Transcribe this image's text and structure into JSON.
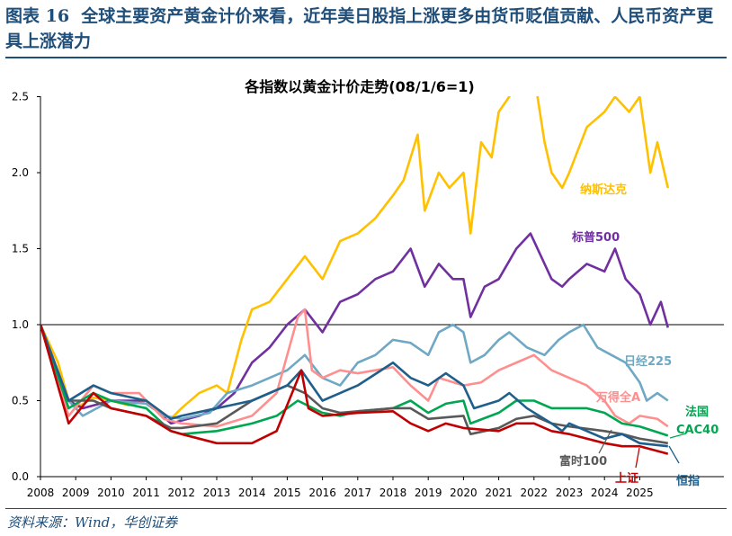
{
  "header": {
    "figure_label": "图表 16",
    "title": "全球主要资产黄金计价来看，近年美日股指上涨更多由货币贬值贡献、人民币资产更具上涨潜力"
  },
  "source": "资料来源：Wind，华创证券",
  "chart_data": {
    "type": "line",
    "title": "各指数以黄金计价走势(08/1/6=1)",
    "xlabel": "",
    "ylabel": "",
    "xlim": [
      2008,
      2026.3
    ],
    "ylim": [
      0,
      2.5
    ],
    "x_ticks": [
      "2008",
      "2009",
      "2010",
      "2011",
      "2012",
      "2013",
      "2014",
      "2015",
      "2016",
      "2017",
      "2018",
      "2019",
      "2020",
      "2021",
      "2022",
      "2023",
      "2024",
      "2025"
    ],
    "y_ticks": [
      "0.0",
      "0.5",
      "1.0",
      "1.5",
      "2.0",
      "2.5"
    ],
    "reference_line": 1.0,
    "grid": false,
    "series": [
      {
        "name": "纳斯达克",
        "color": "#FFC000",
        "points": [
          [
            2008,
            1
          ],
          [
            2008.5,
            0.75
          ],
          [
            2008.8,
            0.5
          ],
          [
            2009,
            0.45
          ],
          [
            2009.5,
            0.52
          ],
          [
            2010,
            0.5
          ],
          [
            2010.5,
            0.47
          ],
          [
            2011,
            0.5
          ],
          [
            2011.7,
            0.38
          ],
          [
            2012,
            0.45
          ],
          [
            2012.5,
            0.55
          ],
          [
            2013,
            0.6
          ],
          [
            2013.3,
            0.55
          ],
          [
            2013.7,
            0.9
          ],
          [
            2014,
            1.1
          ],
          [
            2014.5,
            1.15
          ],
          [
            2015,
            1.3
          ],
          [
            2015.5,
            1.45
          ],
          [
            2016,
            1.3
          ],
          [
            2016.5,
            1.55
          ],
          [
            2017,
            1.6
          ],
          [
            2017.5,
            1.7
          ],
          [
            2018,
            1.85
          ],
          [
            2018.3,
            1.95
          ],
          [
            2018.7,
            2.25
          ],
          [
            2018.9,
            1.75
          ],
          [
            2019.3,
            2.0
          ],
          [
            2019.6,
            1.9
          ],
          [
            2020,
            2.0
          ],
          [
            2020.2,
            1.6
          ],
          [
            2020.5,
            2.2
          ],
          [
            2020.8,
            2.1
          ],
          [
            2021,
            2.4
          ],
          [
            2021.3,
            2.5
          ],
          [
            2021.6,
            2.8
          ],
          [
            2022,
            2.7
          ],
          [
            2022.1,
            2.5
          ],
          [
            2022.3,
            2.2
          ],
          [
            2022.5,
            2.0
          ],
          [
            2022.8,
            1.9
          ],
          [
            2023,
            2.0
          ],
          [
            2023.5,
            2.3
          ],
          [
            2024,
            2.4
          ],
          [
            2024.3,
            2.5
          ],
          [
            2024.7,
            2.4
          ],
          [
            2025,
            2.5
          ],
          [
            2025.3,
            2.0
          ],
          [
            2025.5,
            2.2
          ],
          [
            2025.8,
            1.9
          ]
        ]
      },
      {
        "name": "标普500",
        "color": "#7030A0",
        "points": [
          [
            2008,
            1
          ],
          [
            2008.8,
            0.5
          ],
          [
            2009.2,
            0.45
          ],
          [
            2010,
            0.5
          ],
          [
            2011,
            0.5
          ],
          [
            2011.7,
            0.35
          ],
          [
            2012.5,
            0.4
          ],
          [
            2013,
            0.45
          ],
          [
            2013.5,
            0.55
          ],
          [
            2014,
            0.75
          ],
          [
            2014.5,
            0.85
          ],
          [
            2015,
            1.0
          ],
          [
            2015.5,
            1.1
          ],
          [
            2016,
            0.95
          ],
          [
            2016.5,
            1.15
          ],
          [
            2017,
            1.2
          ],
          [
            2017.5,
            1.3
          ],
          [
            2018,
            1.35
          ],
          [
            2018.5,
            1.5
          ],
          [
            2018.9,
            1.25
          ],
          [
            2019.3,
            1.4
          ],
          [
            2019.7,
            1.3
          ],
          [
            2020,
            1.3
          ],
          [
            2020.2,
            1.05
          ],
          [
            2020.6,
            1.25
          ],
          [
            2021,
            1.3
          ],
          [
            2021.5,
            1.5
          ],
          [
            2021.9,
            1.6
          ],
          [
            2022.2,
            1.45
          ],
          [
            2022.5,
            1.3
          ],
          [
            2022.8,
            1.25
          ],
          [
            2023,
            1.3
          ],
          [
            2023.5,
            1.4
          ],
          [
            2024,
            1.35
          ],
          [
            2024.3,
            1.5
          ],
          [
            2024.6,
            1.3
          ],
          [
            2025,
            1.2
          ],
          [
            2025.3,
            1.0
          ],
          [
            2025.6,
            1.15
          ],
          [
            2025.8,
            0.98
          ]
        ]
      },
      {
        "name": "日经225",
        "color": "#6FA8C4",
        "points": [
          [
            2008,
            1
          ],
          [
            2008.8,
            0.5
          ],
          [
            2009.2,
            0.4
          ],
          [
            2010,
            0.5
          ],
          [
            2011,
            0.48
          ],
          [
            2011.5,
            0.4
          ],
          [
            2012,
            0.38
          ],
          [
            2012.8,
            0.42
          ],
          [
            2013.3,
            0.55
          ],
          [
            2014,
            0.6
          ],
          [
            2015,
            0.7
          ],
          [
            2015.5,
            0.8
          ],
          [
            2016,
            0.65
          ],
          [
            2016.5,
            0.6
          ],
          [
            2017,
            0.75
          ],
          [
            2017.5,
            0.8
          ],
          [
            2018,
            0.9
          ],
          [
            2018.5,
            0.88
          ],
          [
            2019,
            0.8
          ],
          [
            2019.3,
            0.95
          ],
          [
            2019.7,
            1.0
          ],
          [
            2020,
            0.95
          ],
          [
            2020.2,
            0.75
          ],
          [
            2020.6,
            0.8
          ],
          [
            2021,
            0.9
          ],
          [
            2021.3,
            0.95
          ],
          [
            2021.8,
            0.85
          ],
          [
            2022.3,
            0.8
          ],
          [
            2022.7,
            0.9
          ],
          [
            2023,
            0.95
          ],
          [
            2023.4,
            1.0
          ],
          [
            2023.8,
            0.85
          ],
          [
            2024.2,
            0.8
          ],
          [
            2024.6,
            0.75
          ],
          [
            2025,
            0.62
          ],
          [
            2025.2,
            0.5
          ],
          [
            2025.5,
            0.55
          ],
          [
            2025.8,
            0.5
          ]
        ]
      },
      {
        "name": "万得全A",
        "color": "#FF8F8F",
        "points": [
          [
            2008,
            1
          ],
          [
            2008.8,
            0.4
          ],
          [
            2009.5,
            0.6
          ],
          [
            2010,
            0.55
          ],
          [
            2010.8,
            0.55
          ],
          [
            2011.5,
            0.38
          ],
          [
            2012,
            0.35
          ],
          [
            2013,
            0.33
          ],
          [
            2014,
            0.4
          ],
          [
            2014.7,
            0.55
          ],
          [
            2015.3,
            1.05
          ],
          [
            2015.5,
            1.1
          ],
          [
            2015.7,
            0.7
          ],
          [
            2016,
            0.65
          ],
          [
            2016.5,
            0.7
          ],
          [
            2017,
            0.68
          ],
          [
            2018,
            0.72
          ],
          [
            2018.5,
            0.6
          ],
          [
            2019,
            0.5
          ],
          [
            2019.3,
            0.65
          ],
          [
            2020,
            0.6
          ],
          [
            2020.5,
            0.62
          ],
          [
            2021,
            0.7
          ],
          [
            2021.5,
            0.75
          ],
          [
            2022,
            0.8
          ],
          [
            2022.5,
            0.7
          ],
          [
            2023,
            0.65
          ],
          [
            2023.5,
            0.6
          ],
          [
            2024,
            0.5
          ],
          [
            2024.3,
            0.4
          ],
          [
            2024.7,
            0.35
          ],
          [
            2025,
            0.4
          ],
          [
            2025.5,
            0.38
          ],
          [
            2025.8,
            0.33
          ]
        ]
      },
      {
        "name": "法国CAC40",
        "color": "#00A650",
        "points": [
          [
            2008,
            1
          ],
          [
            2008.8,
            0.45
          ],
          [
            2009.5,
            0.55
          ],
          [
            2010,
            0.5
          ],
          [
            2011,
            0.45
          ],
          [
            2011.7,
            0.3
          ],
          [
            2012,
            0.28
          ],
          [
            2013,
            0.3
          ],
          [
            2014,
            0.35
          ],
          [
            2014.7,
            0.4
          ],
          [
            2015.3,
            0.5
          ],
          [
            2016,
            0.42
          ],
          [
            2016.5,
            0.4
          ],
          [
            2017,
            0.43
          ],
          [
            2018,
            0.45
          ],
          [
            2018.5,
            0.5
          ],
          [
            2019,
            0.42
          ],
          [
            2019.5,
            0.48
          ],
          [
            2020,
            0.5
          ],
          [
            2020.2,
            0.35
          ],
          [
            2021,
            0.42
          ],
          [
            2021.5,
            0.5
          ],
          [
            2022,
            0.5
          ],
          [
            2022.5,
            0.45
          ],
          [
            2023,
            0.45
          ],
          [
            2023.5,
            0.45
          ],
          [
            2024,
            0.42
          ],
          [
            2024.5,
            0.35
          ],
          [
            2025,
            0.33
          ],
          [
            2025.8,
            0.27
          ]
        ]
      },
      {
        "name": "富时100",
        "color": "#595959",
        "points": [
          [
            2008,
            1
          ],
          [
            2008.8,
            0.5
          ],
          [
            2009.5,
            0.5
          ],
          [
            2010,
            0.45
          ],
          [
            2011,
            0.4
          ],
          [
            2011.7,
            0.32
          ],
          [
            2012,
            0.32
          ],
          [
            2013,
            0.35
          ],
          [
            2014,
            0.5
          ],
          [
            2014.5,
            0.55
          ],
          [
            2015,
            0.6
          ],
          [
            2015.5,
            0.55
          ],
          [
            2016,
            0.45
          ],
          [
            2016.5,
            0.42
          ],
          [
            2017,
            0.43
          ],
          [
            2018,
            0.45
          ],
          [
            2018.5,
            0.45
          ],
          [
            2019,
            0.38
          ],
          [
            2020,
            0.4
          ],
          [
            2020.2,
            0.28
          ],
          [
            2021,
            0.32
          ],
          [
            2021.5,
            0.38
          ],
          [
            2022,
            0.4
          ],
          [
            2022.5,
            0.35
          ],
          [
            2023,
            0.33
          ],
          [
            2024,
            0.3
          ],
          [
            2024.5,
            0.28
          ],
          [
            2025,
            0.25
          ],
          [
            2025.8,
            0.22
          ]
        ]
      },
      {
        "name": "恒指",
        "color": "#1F5F8B",
        "points": [
          [
            2008,
            1
          ],
          [
            2008.8,
            0.5
          ],
          [
            2009.5,
            0.6
          ],
          [
            2010,
            0.55
          ],
          [
            2011,
            0.5
          ],
          [
            2011.7,
            0.38
          ],
          [
            2012,
            0.4
          ],
          [
            2013,
            0.45
          ],
          [
            2014,
            0.5
          ],
          [
            2015,
            0.6
          ],
          [
            2015.4,
            0.7
          ],
          [
            2016,
            0.5
          ],
          [
            2016.5,
            0.55
          ],
          [
            2017,
            0.6
          ],
          [
            2018,
            0.75
          ],
          [
            2018.5,
            0.65
          ],
          [
            2019,
            0.6
          ],
          [
            2019.5,
            0.68
          ],
          [
            2020,
            0.6
          ],
          [
            2020.3,
            0.45
          ],
          [
            2021,
            0.5
          ],
          [
            2021.3,
            0.55
          ],
          [
            2021.8,
            0.45
          ],
          [
            2022.5,
            0.35
          ],
          [
            2022.8,
            0.3
          ],
          [
            2023,
            0.35
          ],
          [
            2023.5,
            0.3
          ],
          [
            2024,
            0.25
          ],
          [
            2024.5,
            0.28
          ],
          [
            2025,
            0.22
          ],
          [
            2025.8,
            0.2
          ]
        ]
      },
      {
        "name": "上证",
        "color": "#C00000",
        "points": [
          [
            2008,
            1
          ],
          [
            2008.8,
            0.35
          ],
          [
            2009.5,
            0.55
          ],
          [
            2010,
            0.45
          ],
          [
            2011,
            0.4
          ],
          [
            2011.7,
            0.3
          ],
          [
            2012,
            0.28
          ],
          [
            2013,
            0.22
          ],
          [
            2014,
            0.22
          ],
          [
            2014.7,
            0.3
          ],
          [
            2015.4,
            0.7
          ],
          [
            2015.6,
            0.45
          ],
          [
            2016,
            0.4
          ],
          [
            2017,
            0.42
          ],
          [
            2018,
            0.43
          ],
          [
            2018.5,
            0.35
          ],
          [
            2019,
            0.3
          ],
          [
            2019.5,
            0.35
          ],
          [
            2020,
            0.32
          ],
          [
            2021,
            0.3
          ],
          [
            2021.5,
            0.35
          ],
          [
            2022,
            0.35
          ],
          [
            2022.5,
            0.3
          ],
          [
            2023,
            0.28
          ],
          [
            2024,
            0.22
          ],
          [
            2024.5,
            0.2
          ],
          [
            2025,
            0.2
          ],
          [
            2025.8,
            0.15
          ]
        ]
      }
    ],
    "labels": {
      "nasdaq": "纳斯达克",
      "sp500": "标普500",
      "nikkei": "日经225",
      "winda": "万得全A",
      "cac_1": "法国",
      "cac_2": "CAC40",
      "ftse": "富时100",
      "sse": "上证",
      "hsi": "恒指"
    }
  }
}
